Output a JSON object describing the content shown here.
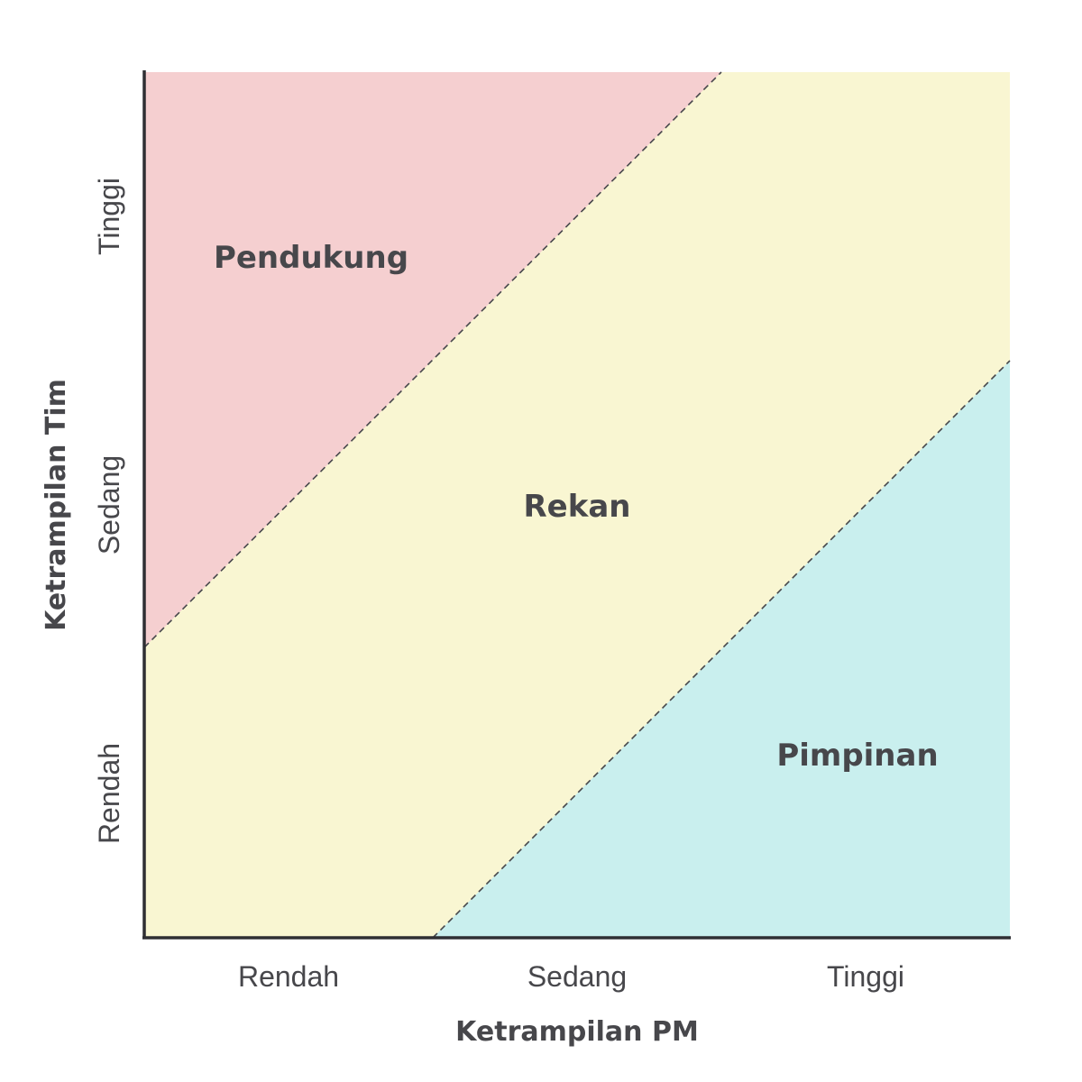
{
  "colors": {
    "top_region": "#f5cfd0",
    "middle_region": "#f9f6d2",
    "bottom_region": "#c9efee",
    "text": "#47474b",
    "axis": "#2f2f33"
  },
  "regions": {
    "top": "Pendukung",
    "middle": "Rekan",
    "bottom": "Pimpinan"
  },
  "x_axis": {
    "title": "Ketrampilan PM",
    "ticks": [
      "Rendah",
      "Sedang",
      "Tinggi"
    ]
  },
  "y_axis": {
    "title": "Ketrampilan Tim",
    "ticks": [
      "Rendah",
      "Sedang",
      "Tinggi"
    ]
  }
}
